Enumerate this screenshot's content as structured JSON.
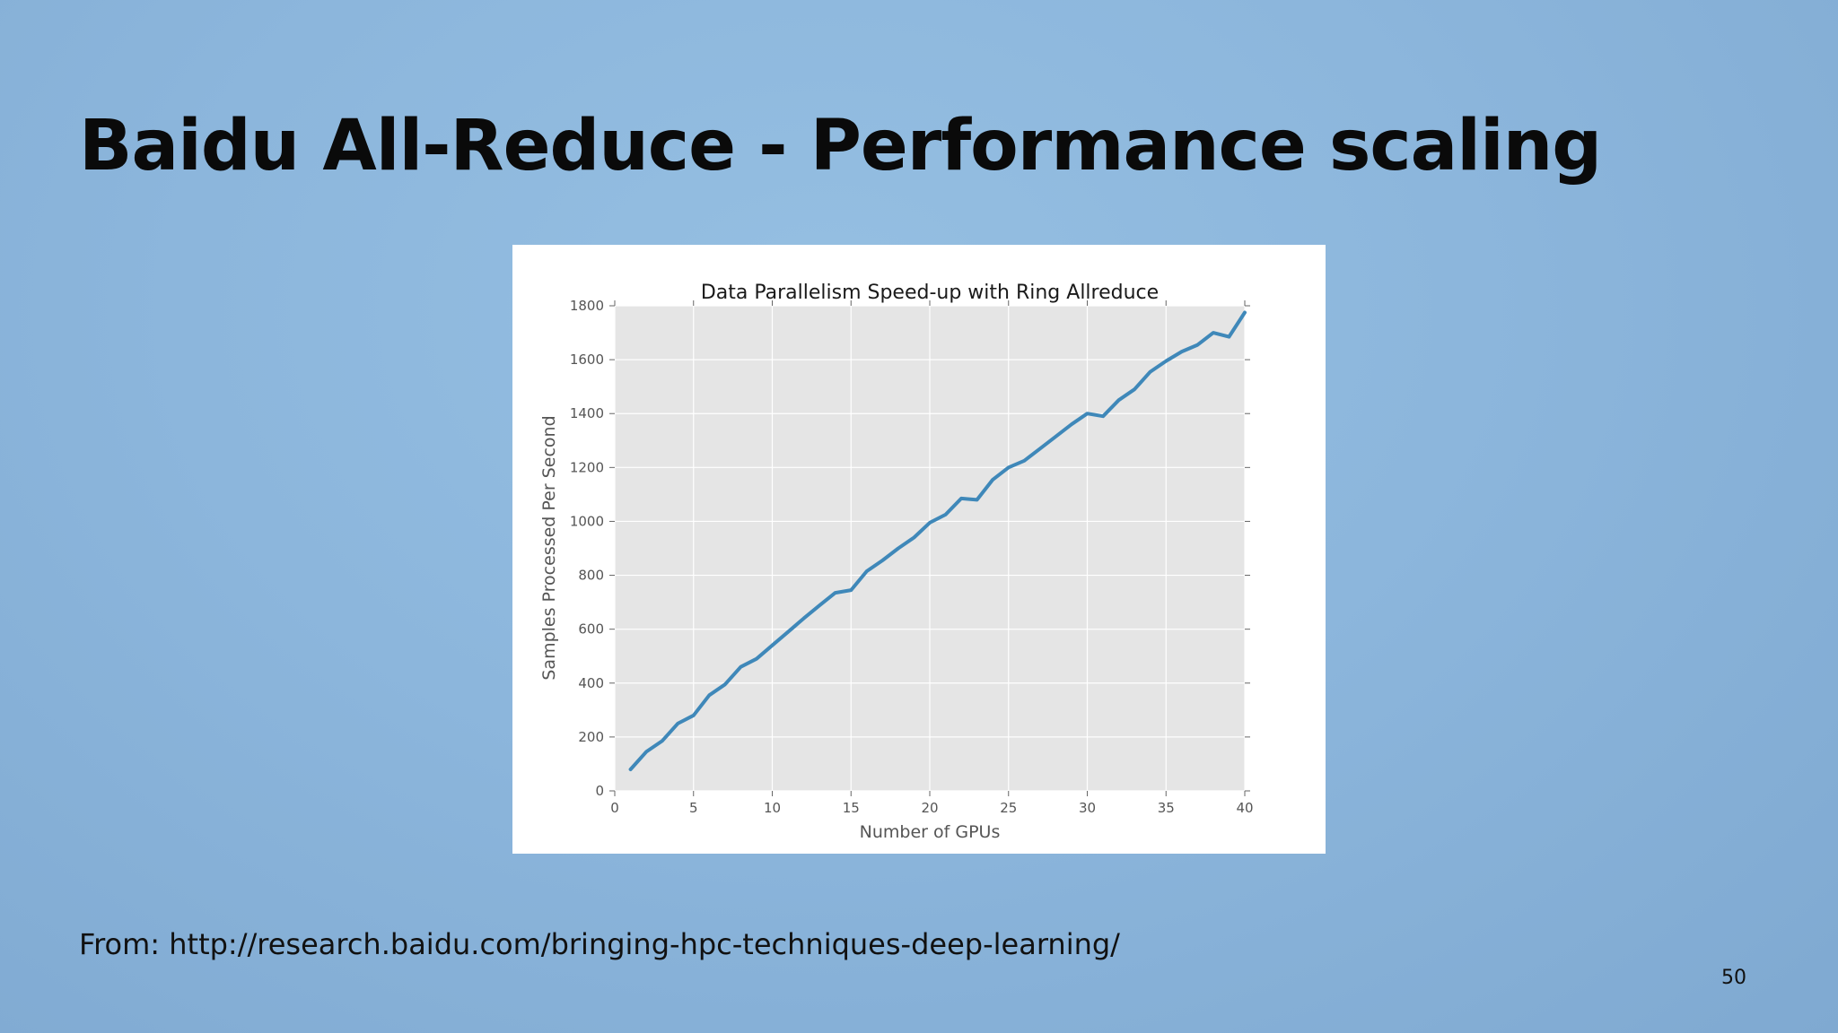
{
  "slide": {
    "title": "Baidu All-Reduce - Performance scaling",
    "source_note": "From: http://research.baidu.com/bringing-hpc-techniques-deep-learning/",
    "page_number": "50"
  },
  "colors": {
    "line": "#3f88b9",
    "plot_background": "#e5e5e5",
    "grid": "#ffffff"
  },
  "chart_data": {
    "type": "line",
    "title": "Data Parallelism Speed-up with Ring Allreduce",
    "xlabel": "Number of GPUs",
    "ylabel": "Samples Processed Per Second",
    "xlim": [
      0,
      40
    ],
    "ylim": [
      0,
      1800
    ],
    "xticks": [
      0,
      5,
      10,
      15,
      20,
      25,
      30,
      35,
      40
    ],
    "yticks": [
      0,
      200,
      400,
      600,
      800,
      1000,
      1200,
      1400,
      1600,
      1800
    ],
    "grid": true,
    "x": [
      1,
      2,
      3,
      4,
      5,
      6,
      7,
      8,
      9,
      10,
      11,
      12,
      13,
      14,
      15,
      16,
      17,
      18,
      19,
      20,
      21,
      22,
      23,
      24,
      25,
      26,
      27,
      28,
      29,
      30,
      31,
      32,
      33,
      34,
      35,
      36,
      37,
      38,
      39,
      40
    ],
    "series": [
      {
        "values": [
          80,
          145,
          185,
          250,
          280,
          355,
          395,
          460,
          490,
          540,
          590,
          640,
          688,
          735,
          745,
          815,
          855,
          900,
          940,
          995,
          1025,
          1085,
          1080,
          1155,
          1200,
          1225,
          1270,
          1315,
          1360,
          1400,
          1390,
          1450,
          1490,
          1555,
          1595,
          1630,
          1655,
          1700,
          1685,
          1775
        ]
      }
    ]
  }
}
